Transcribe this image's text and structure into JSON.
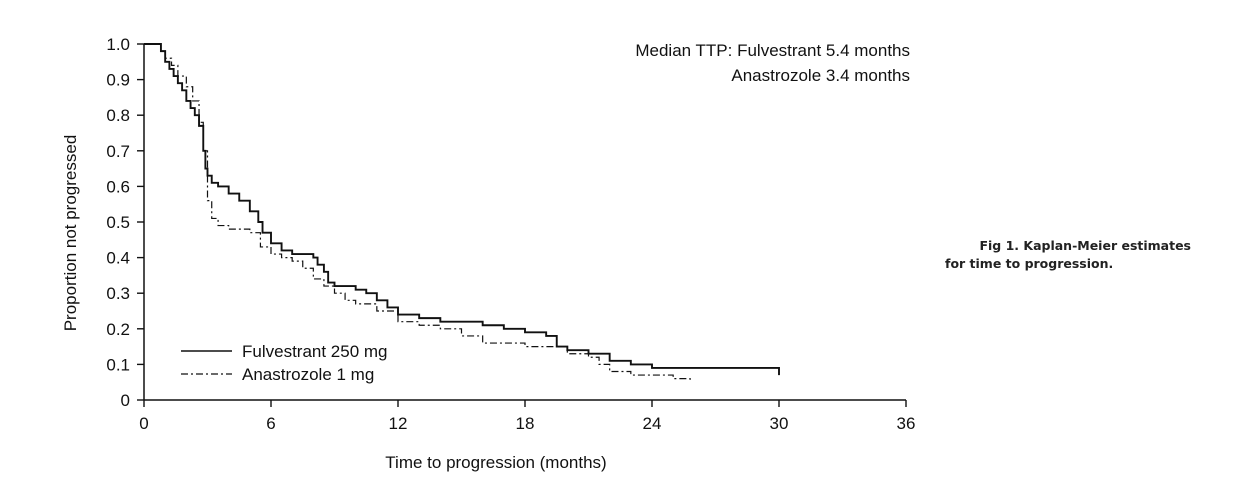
{
  "chart_data": {
    "type": "line",
    "xlabel": "Time to progression (months)",
    "ylabel": "Proportion not progressed",
    "xlim": [
      0,
      36
    ],
    "ylim": [
      0,
      1.0
    ],
    "x_ticks": [
      "0",
      "6",
      "12",
      "18",
      "24",
      "30",
      "36"
    ],
    "y_ticks": [
      "0",
      "0.1",
      "0.2",
      "0.3",
      "0.4",
      "0.5",
      "0.6",
      "0.7",
      "0.8",
      "0.9",
      "1.0"
    ],
    "grid": false,
    "legend_position": "bottom-left",
    "annotation": {
      "line1": "Median TTP: Fulvestrant 5.4 months",
      "line2": "Anastrozole 3.4 months"
    },
    "series": [
      {
        "name": "Fulvestrant 250 mg",
        "style": "solid",
        "color": "#111111",
        "x": [
          0,
          0.8,
          1.0,
          1.2,
          1.4,
          1.6,
          1.8,
          2.0,
          2.2,
          2.4,
          2.6,
          2.8,
          2.9,
          3.0,
          3.2,
          3.5,
          4.0,
          4.5,
          5.0,
          5.4,
          5.6,
          6.0,
          6.5,
          7.0,
          8.0,
          8.2,
          8.5,
          8.7,
          9.0,
          10.0,
          10.5,
          11.0,
          11.5,
          12.0,
          13.0,
          14.0,
          15.0,
          16.0,
          17.0,
          18.0,
          19.0,
          19.5,
          20.0,
          21.0,
          22.0,
          23.0,
          24.0,
          27.0,
          30.0
        ],
        "y": [
          1.0,
          0.98,
          0.95,
          0.93,
          0.91,
          0.89,
          0.87,
          0.84,
          0.82,
          0.8,
          0.77,
          0.7,
          0.65,
          0.63,
          0.61,
          0.6,
          0.58,
          0.56,
          0.53,
          0.5,
          0.47,
          0.44,
          0.42,
          0.41,
          0.4,
          0.38,
          0.36,
          0.33,
          0.32,
          0.31,
          0.3,
          0.28,
          0.26,
          0.24,
          0.23,
          0.22,
          0.22,
          0.21,
          0.2,
          0.19,
          0.18,
          0.15,
          0.14,
          0.13,
          0.11,
          0.1,
          0.09,
          0.09,
          0.07
        ]
      },
      {
        "name": "Anastrozole 1 mg",
        "style": "dash-dot",
        "color": "#111111",
        "x": [
          0,
          0.8,
          1.0,
          1.3,
          1.6,
          2.0,
          2.3,
          2.6,
          2.8,
          3.0,
          3.2,
          3.5,
          4.0,
          5.0,
          5.5,
          6.0,
          6.5,
          7.0,
          7.5,
          8.0,
          8.5,
          9.0,
          9.5,
          10.0,
          11.0,
          12.0,
          13.0,
          14.0,
          15.0,
          16.0,
          17.0,
          18.0,
          19.0,
          20.0,
          21.0,
          21.5,
          22.0,
          23.0,
          24.0,
          25.0,
          25.8
        ],
        "y": [
          1.0,
          0.98,
          0.96,
          0.94,
          0.91,
          0.88,
          0.84,
          0.78,
          0.7,
          0.56,
          0.51,
          0.49,
          0.48,
          0.47,
          0.43,
          0.41,
          0.4,
          0.39,
          0.37,
          0.34,
          0.32,
          0.3,
          0.28,
          0.27,
          0.25,
          0.22,
          0.21,
          0.2,
          0.18,
          0.16,
          0.16,
          0.15,
          0.15,
          0.13,
          0.12,
          0.1,
          0.08,
          0.07,
          0.07,
          0.06,
          0.05
        ]
      }
    ]
  },
  "caption": {
    "line1": "Fig 1.   Kaplan-Meier estimates",
    "line2": "for time to progression."
  }
}
